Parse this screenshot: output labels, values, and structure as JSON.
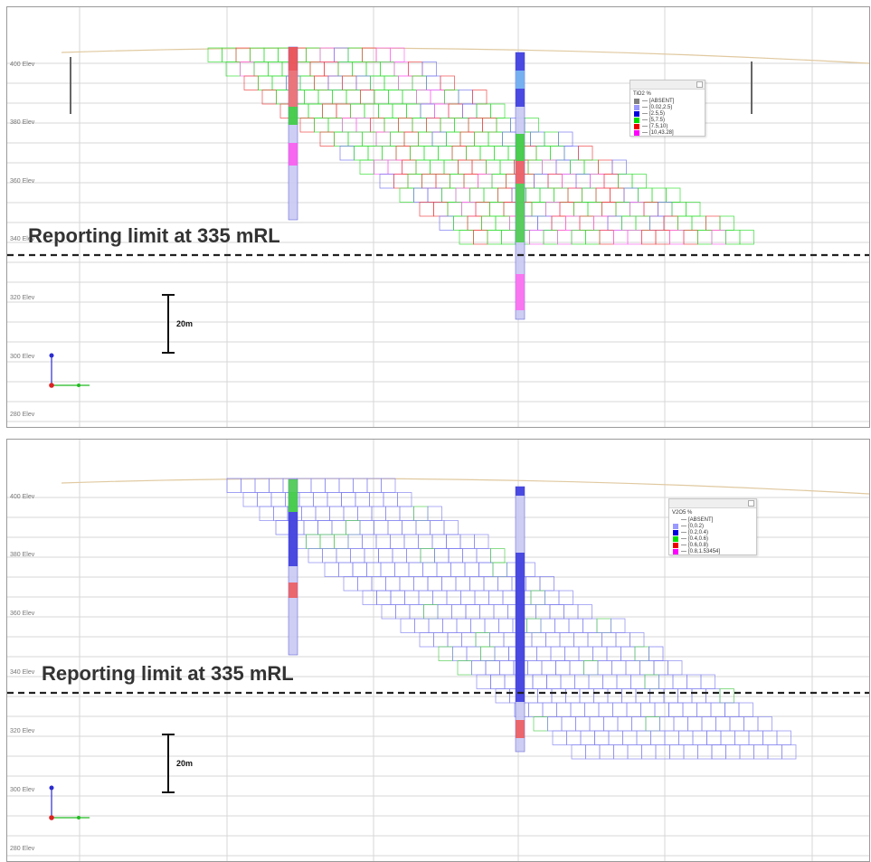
{
  "panels": [
    {
      "id": "top",
      "legend": {
        "title": "TiO2 %",
        "entries": [
          {
            "label": "[ABSENT]",
            "color": "#808080"
          },
          {
            "label": "[0.02,2.5)",
            "color": "#9999ff"
          },
          {
            "label": "[2.5,5)",
            "color": "#0000dd"
          },
          {
            "label": "[5,7.5)",
            "color": "#00dd00"
          },
          {
            "label": "[7.5,10)",
            "color": "#ee0000"
          },
          {
            "label": "[10,43.28]",
            "color": "#ff00ff"
          }
        ]
      },
      "reporting_limit_text": "Reporting limit at 335 mRL",
      "scale_label": "20m",
      "rl_labels": [
        "400 Elev",
        "380 Elev",
        "360 Elev",
        "340 Elev",
        "320 Elev",
        "300 Elev",
        "280 Elev"
      ]
    },
    {
      "id": "bottom",
      "legend": {
        "title": "V2O5 %",
        "entries": [
          {
            "label": "[ABSENT]",
            "color": ""
          },
          {
            "label": "[0,0.2)",
            "color": "#9999ff"
          },
          {
            "label": "[0.2,0.4)",
            "color": "#0000dd"
          },
          {
            "label": "[0.4,0.6)",
            "color": "#00dd00"
          },
          {
            "label": "[0.6,0.8)",
            "color": "#ee0000"
          },
          {
            "label": "[0.8,1.53454]",
            "color": "#ff00ff"
          }
        ]
      },
      "reporting_limit_text": "Reporting limit at 335 mRL",
      "scale_label": "20m",
      "rl_labels": [
        "400 Elev",
        "380 Elev",
        "360 Elev",
        "340 Elev",
        "320 Elev",
        "300 Elev",
        "280 Elev"
      ]
    }
  ],
  "colors": {
    "grid": "#d7d7d7",
    "topography": "#e0c9a0",
    "reporting_line": "#222222",
    "drillhole": "#5a5ad8"
  }
}
